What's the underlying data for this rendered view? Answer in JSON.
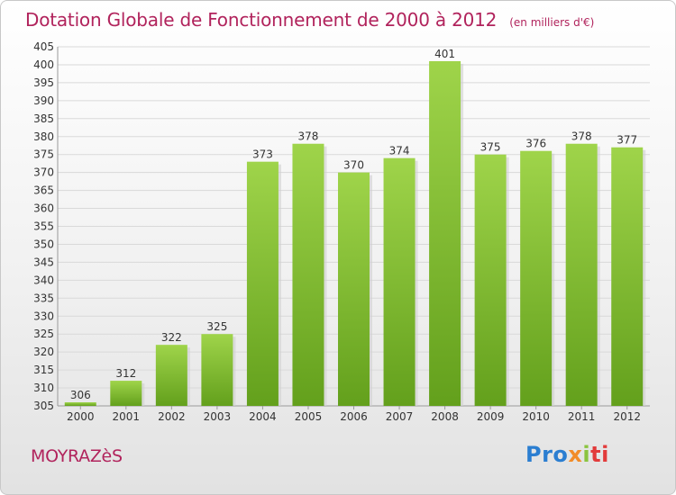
{
  "header": {
    "title": "Dotation Globale de Fonctionnement de 2000 à 2012",
    "subtitle": "(en milliers d'€)"
  },
  "footer": {
    "commune": "MOYRAZèS",
    "logo_letters": [
      "Pro",
      "x",
      "i",
      "ti"
    ]
  },
  "colors": {
    "bar": "#7fbb2c",
    "bar_light": "#9fd44a",
    "accent": "#b1235c",
    "grid": "#d9d9d9"
  },
  "chart_data": {
    "type": "bar",
    "title": "Dotation Globale de Fonctionnement de 2000 à 2012",
    "subtitle": "(en milliers d'€)",
    "xlabel": "",
    "ylabel": "",
    "categories": [
      "2000",
      "2001",
      "2002",
      "2003",
      "2004",
      "2005",
      "2006",
      "2007",
      "2008",
      "2009",
      "2010",
      "2011",
      "2012"
    ],
    "values": [
      306,
      312,
      322,
      325,
      373,
      378,
      370,
      374,
      401,
      375,
      376,
      378,
      377
    ],
    "ylim": [
      305,
      405
    ],
    "ytick_step": 5,
    "grid": true,
    "legend": "none"
  }
}
